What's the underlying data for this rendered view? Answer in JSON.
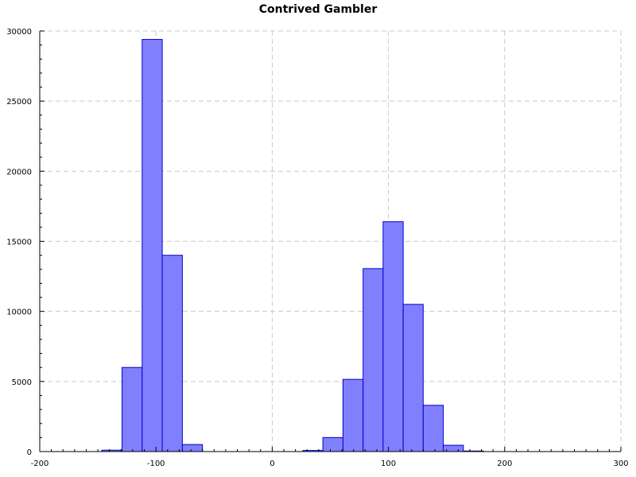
{
  "chart_data": {
    "type": "bar",
    "title": "Contrived Gambler",
    "xlabel": "",
    "ylabel": "",
    "xlim": [
      -200,
      300
    ],
    "ylim": [
      0,
      30000
    ],
    "x_ticks": [
      -200,
      -100,
      0,
      100,
      200,
      300
    ],
    "x_tick_labels": [
      "-200",
      "-100",
      "0",
      "100",
      "200",
      "300"
    ],
    "y_ticks": [
      0,
      5000,
      10000,
      15000,
      20000,
      25000,
      30000
    ],
    "y_tick_labels": [
      "0",
      "5000",
      "10000",
      "15000",
      "20000",
      "25000",
      "30000"
    ],
    "grid": true,
    "bar_color": "#8080ff",
    "bar_edge_color": "#0000cc",
    "bins": [
      {
        "x0": -146.5,
        "x1": -129.2,
        "value": 100
      },
      {
        "x0": -129.2,
        "x1": -111.9,
        "value": 6000
      },
      {
        "x0": -111.9,
        "x1": -94.6,
        "value": 29400
      },
      {
        "x0": -94.6,
        "x1": -77.3,
        "value": 14000
      },
      {
        "x0": -77.3,
        "x1": -60.0,
        "value": 500
      },
      {
        "x0": 26.4,
        "x1": 43.6,
        "value": 80
      },
      {
        "x0": 43.6,
        "x1": 60.9,
        "value": 1000
      },
      {
        "x0": 60.9,
        "x1": 78.2,
        "value": 5150
      },
      {
        "x0": 78.2,
        "x1": 95.4,
        "value": 13050
      },
      {
        "x0": 95.4,
        "x1": 112.7,
        "value": 16400
      },
      {
        "x0": 112.7,
        "x1": 129.9,
        "value": 10500
      },
      {
        "x0": 129.9,
        "x1": 147.2,
        "value": 3300
      },
      {
        "x0": 147.2,
        "x1": 164.5,
        "value": 450
      },
      {
        "x0": 164.5,
        "x1": 181.8,
        "value": 40
      }
    ]
  }
}
